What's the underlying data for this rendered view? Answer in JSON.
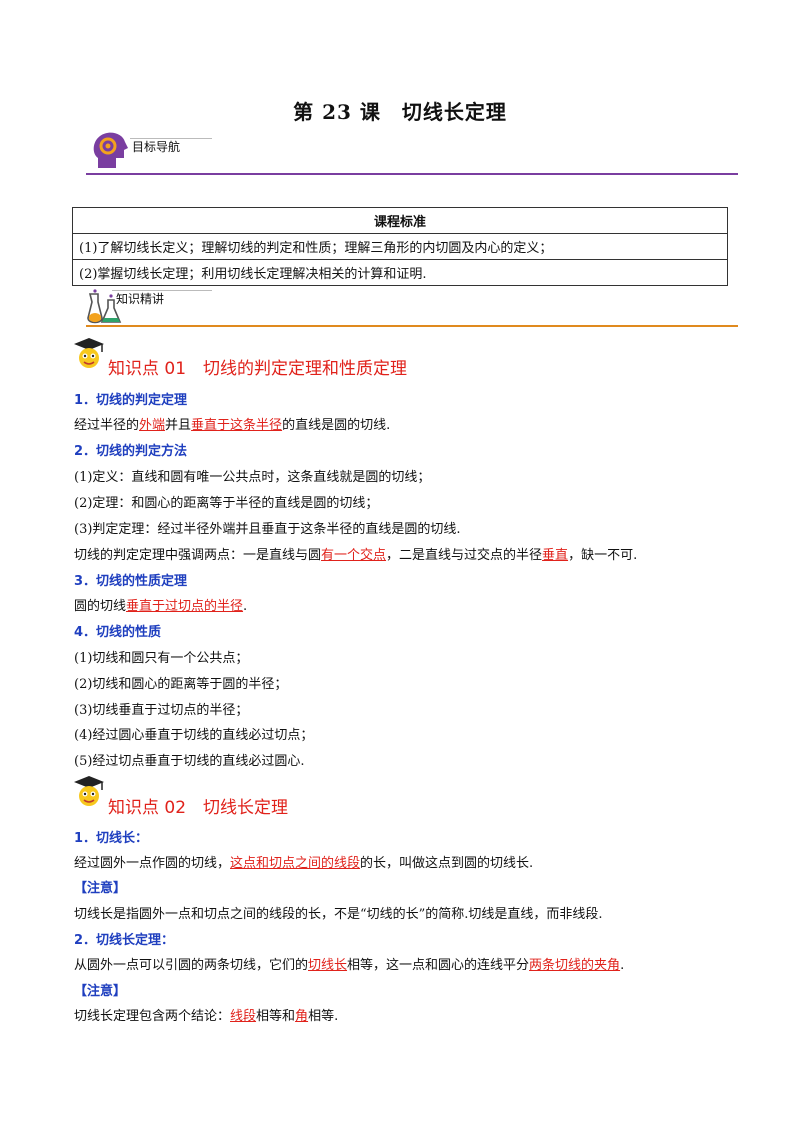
{
  "title": "第 23 课　切线长定理",
  "nav_label": "目标导航",
  "standard": {
    "header": "课程标准",
    "rows": [
      "(1)了解切线长定义；理解切线的判定和性质；理解三角形的内切圆及内心的定义；",
      "(2)掌握切线长定理；利用切线长定理解决相关的计算和证明."
    ]
  },
  "knowledge_label": "知识精讲",
  "kp1": {
    "title": "知识点 01　切线的判定定理和性质定理",
    "s1_title": "1．切线的判定定理",
    "s1_a": "经过半径的",
    "s1_b": "外端",
    "s1_c": "并且",
    "s1_d": "垂直于这条半径",
    "s1_e": "的直线是圆的切线.",
    "s2_title": "2．切线的判定方法",
    "s2_items": [
      "(1)定义：直线和圆有唯一公共点时，这条直线就是圆的切线；",
      "(2)定理：和圆心的距离等于半径的直线是圆的切线；",
      "(3)判定定理：经过半径外端并且垂直于这条半径的直线是圆的切线."
    ],
    "s2_a": "切线的判定定理中强调两点：一是直线与圆",
    "s2_b": "有一个交点",
    "s2_c": "，二是直线与过交点的半径",
    "s2_d": "垂直",
    "s2_e": "，缺一不可.",
    "s3_title": "3．切线的性质定理",
    "s3_a": "圆的切线",
    "s3_b": "垂直于过切点的半径",
    "s3_c": ".",
    "s4_title": "4．切线的性质",
    "s4_items": [
      "(1)切线和圆只有一个公共点；",
      "(2)切线和圆心的距离等于圆的半径；",
      "(3)切线垂直于过切点的半径；",
      "(4)经过圆心垂直于切线的直线必过切点；",
      "(5)经过切点垂直于切线的直线必过圆心."
    ]
  },
  "kp2": {
    "title": "知识点 02　切线长定理",
    "s1_title": "1．切线长：",
    "s1_a": "经过圆外一点作圆的切线，",
    "s1_b": "这点和切点之间的线段",
    "s1_c": "的长，叫做这点到圆的切线长.",
    "note1": "【注意】",
    "note1_text": "切线长是指圆外一点和切点之间的线段的长，不是“切线的长”的简称.切线是直线，而非线段.",
    "s2_title": "2．切线长定理：",
    "s2_a": "从圆外一点可以引圆的两条切线，它们的",
    "s2_b": "切线长",
    "s2_c": "相等，这一点和圆心的连线平分",
    "s2_d": "两条切线的夹角",
    "s2_e": ".",
    "note2": "【注意】",
    "note2_a": "切线长定理包含两个结论：",
    "note2_b": "线段",
    "note2_c": "相等和",
    "note2_d": "角",
    "note2_e": "相等."
  }
}
